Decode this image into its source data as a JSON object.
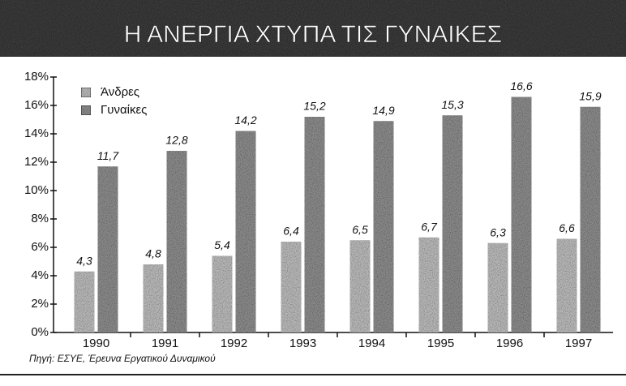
{
  "chart_data": {
    "type": "bar",
    "title": "Η ΑΝΕΡΓΙΑ ΧΤΥΠΑ ΤΙΣ ΓΥΝΑΙΚΕΣ",
    "source": "Πηγή: ΕΣΥΕ, Έρευνα Εργατικού Δυναμικού",
    "categories": [
      "1990",
      "1991",
      "1992",
      "1993",
      "1994",
      "1995",
      "1996",
      "1997"
    ],
    "series": [
      {
        "name": "Άνδρες",
        "color": "#b8b8b8",
        "values": [
          4.3,
          4.8,
          5.4,
          6.4,
          6.5,
          6.7,
          6.3,
          6.6
        ],
        "value_labels": [
          "4,3",
          "4,8",
          "5,4",
          "6,4",
          "6,5",
          "6,7",
          "6,3",
          "6,6"
        ]
      },
      {
        "name": "Γυναίκες",
        "color": "#8a8a8a",
        "values": [
          11.7,
          12.8,
          14.2,
          15.2,
          14.9,
          15.3,
          16.6,
          15.9
        ],
        "value_labels": [
          "11,7",
          "12,8",
          "14,2",
          "15,2",
          "14,9",
          "15,3",
          "16,6",
          "15,9"
        ]
      }
    ],
    "ylim": [
      0,
      18
    ],
    "yticks": [
      {
        "value": 0,
        "label": "0%"
      },
      {
        "value": 2,
        "label": "2%"
      },
      {
        "value": 4,
        "label": "4%"
      },
      {
        "value": 6,
        "label": "6%"
      },
      {
        "value": 8,
        "label": "8%"
      },
      {
        "value": 10,
        "label": "10%"
      },
      {
        "value": 12,
        "label": "12%"
      },
      {
        "value": 14,
        "label": "14%"
      },
      {
        "value": 16,
        "label": "16%"
      },
      {
        "value": 18,
        "label": "18%"
      }
    ],
    "legend": "upper left"
  }
}
